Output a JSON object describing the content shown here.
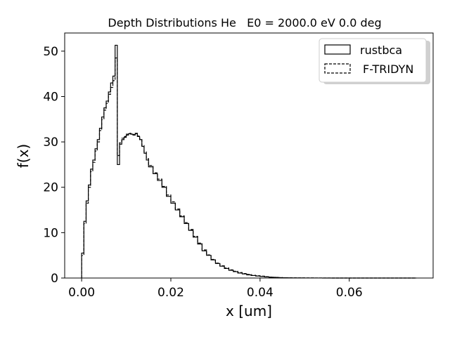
{
  "chart_data": {
    "type": "line",
    "title": "Depth Distributions He   E0 = 2000.0 eV 0.0 deg",
    "xlabel": "x [um]",
    "ylabel": "f(x)",
    "xlim": [
      -0.0038,
      0.0788
    ],
    "ylim": [
      0,
      54
    ],
    "xticks": [
      0.0,
      0.02,
      0.04,
      0.06
    ],
    "xtick_labels": [
      "0.00",
      "0.02",
      "0.04",
      "0.06"
    ],
    "yticks": [
      0,
      10,
      20,
      30,
      40,
      50
    ],
    "ytick_labels": [
      "0",
      "10",
      "20",
      "30",
      "40",
      "50"
    ],
    "grid": false,
    "legend_position": "top-right",
    "series": [
      {
        "name": "rustbca",
        "style": "solid",
        "color": "#000000",
        "x": [
          0.0,
          0.0005,
          0.001,
          0.0015,
          0.002,
          0.0025,
          0.003,
          0.0035,
          0.004,
          0.0045,
          0.005,
          0.0055,
          0.006,
          0.0065,
          0.007,
          0.0075,
          0.008,
          0.0085,
          0.009,
          0.0095,
          0.01,
          0.0105,
          0.011,
          0.0115,
          0.012,
          0.0125,
          0.013,
          0.0135,
          0.014,
          0.0145,
          0.015,
          0.016,
          0.017,
          0.018,
          0.019,
          0.02,
          0.021,
          0.022,
          0.023,
          0.024,
          0.025,
          0.026,
          0.027,
          0.028,
          0.029,
          0.03,
          0.031,
          0.032,
          0.033,
          0.034,
          0.035,
          0.036,
          0.037,
          0.038,
          0.039,
          0.04,
          0.041,
          0.042,
          0.043,
          0.044,
          0.045,
          0.046,
          0.047,
          0.048,
          0.049,
          0.05,
          0.052,
          0.054,
          0.056,
          0.058,
          0.06,
          0.062,
          0.064,
          0.066,
          0.068,
          0.07,
          0.072,
          0.0745
        ],
        "y": [
          5.5,
          12.5,
          17.0,
          20.5,
          24.0,
          26.0,
          28.5,
          30.5,
          33.0,
          35.5,
          37.5,
          39.0,
          41.0,
          43.0,
          44.5,
          51.3,
          25.0,
          29.5,
          30.5,
          31.0,
          31.5,
          31.8,
          31.7,
          31.5,
          31.8,
          31.2,
          30.5,
          29.0,
          27.5,
          26.0,
          24.5,
          23.0,
          21.5,
          20.0,
          18.0,
          16.5,
          15.0,
          13.5,
          12.0,
          10.5,
          9.0,
          7.5,
          6.0,
          5.0,
          4.0,
          3.2,
          2.6,
          2.1,
          1.7,
          1.4,
          1.1,
          0.9,
          0.7,
          0.55,
          0.45,
          0.35,
          0.25,
          0.18,
          0.13,
          0.09,
          0.06,
          0.04,
          0.03,
          0.02,
          0.015,
          0.01,
          0.008,
          0.005,
          0.003,
          0.002,
          0.001,
          0.0008,
          0.0005,
          0.0003,
          0.0002,
          0.0001,
          0.0,
          0.0
        ]
      },
      {
        "name": "F-TRIDYN",
        "style": "dashed",
        "color": "#000000",
        "x": [
          0.0,
          0.0005,
          0.001,
          0.0015,
          0.002,
          0.0025,
          0.003,
          0.0035,
          0.004,
          0.0045,
          0.005,
          0.0055,
          0.006,
          0.0065,
          0.007,
          0.0075,
          0.008,
          0.0085,
          0.009,
          0.0095,
          0.01,
          0.0105,
          0.011,
          0.0115,
          0.012,
          0.0125,
          0.013,
          0.0135,
          0.014,
          0.0145,
          0.015,
          0.016,
          0.017,
          0.018,
          0.019,
          0.02,
          0.021,
          0.022,
          0.023,
          0.024,
          0.025,
          0.026,
          0.027,
          0.028,
          0.029,
          0.03,
          0.031,
          0.032,
          0.033,
          0.034,
          0.035,
          0.036,
          0.037,
          0.038,
          0.039,
          0.04,
          0.041,
          0.042,
          0.043,
          0.044,
          0.045,
          0.046,
          0.047,
          0.048,
          0.049,
          0.05,
          0.052,
          0.054,
          0.056,
          0.058,
          0.06,
          0.062,
          0.064,
          0.066,
          0.068,
          0.07,
          0.072,
          0.0745
        ],
        "y": [
          5.0,
          12.0,
          16.5,
          20.0,
          23.5,
          25.5,
          28.0,
          30.0,
          32.5,
          35.0,
          37.0,
          38.5,
          40.5,
          42.0,
          43.5,
          48.5,
          27.0,
          29.8,
          30.8,
          31.2,
          31.7,
          31.9,
          31.8,
          31.6,
          31.9,
          31.3,
          30.6,
          29.2,
          27.8,
          26.3,
          24.8,
          23.2,
          21.8,
          20.2,
          18.3,
          16.8,
          15.2,
          13.7,
          12.2,
          10.7,
          9.2,
          7.7,
          6.2,
          5.1,
          4.1,
          3.3,
          2.7,
          2.2,
          1.8,
          1.5,
          1.2,
          1.0,
          0.8,
          0.6,
          0.5,
          0.4,
          0.3,
          0.2,
          0.15,
          0.1,
          0.07,
          0.05,
          0.04,
          0.03,
          0.02,
          0.015,
          0.01,
          0.007,
          0.005,
          0.003,
          0.002,
          0.001,
          0.0008,
          0.0005,
          0.0003,
          0.0002,
          0.0001,
          0.0
        ]
      }
    ]
  }
}
